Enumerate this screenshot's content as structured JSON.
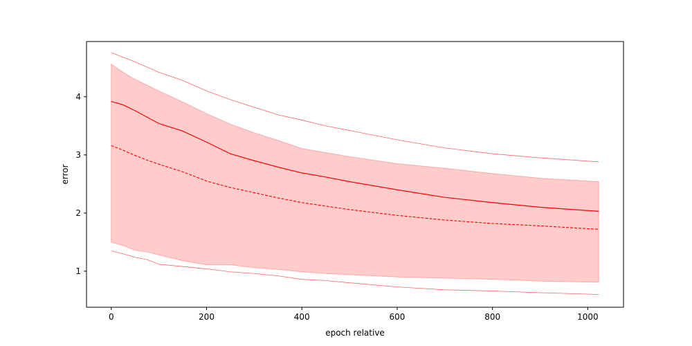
{
  "chart_data": {
    "type": "line",
    "title": "",
    "xlabel": "epoch relative",
    "ylabel": "error",
    "xlim": [
      -52,
      1075
    ],
    "ylim": [
      0.38,
      4.95
    ],
    "xticks": [
      0,
      200,
      400,
      600,
      800,
      1000
    ],
    "yticks": [
      1,
      2,
      3,
      4
    ],
    "grid": false,
    "legend": "none",
    "x": [
      0,
      25,
      50,
      75,
      100,
      150,
      200,
      250,
      300,
      350,
      400,
      450,
      500,
      600,
      700,
      800,
      900,
      1023
    ],
    "series": [
      {
        "style": "solid",
        "color": "#ff0000",
        "values": [
          3.92,
          3.86,
          3.76,
          3.65,
          3.54,
          3.41,
          3.22,
          3.02,
          2.9,
          2.79,
          2.69,
          2.62,
          2.54,
          2.4,
          2.27,
          2.18,
          2.1,
          2.03
        ]
      },
      {
        "style": "dashed",
        "color": "#ff0000",
        "values": [
          3.16,
          3.08,
          2.99,
          2.91,
          2.84,
          2.71,
          2.55,
          2.44,
          2.35,
          2.26,
          2.18,
          2.12,
          2.06,
          1.96,
          1.88,
          1.82,
          1.78,
          1.72
        ]
      },
      {
        "style": "band",
        "color": "#ff0000",
        "lower": [
          1.5,
          1.44,
          1.36,
          1.33,
          1.28,
          1.18,
          1.11,
          1.11,
          1.06,
          1.03,
          0.99,
          0.96,
          0.94,
          0.9,
          0.88,
          0.86,
          0.83,
          0.81
        ],
        "upper": [
          4.56,
          4.42,
          4.3,
          4.2,
          4.1,
          3.91,
          3.71,
          3.53,
          3.38,
          3.25,
          3.11,
          3.04,
          2.97,
          2.85,
          2.77,
          2.68,
          2.6,
          2.54
        ]
      },
      {
        "style": "thin",
        "color": "#ff0000",
        "values": [
          4.76,
          4.68,
          4.6,
          4.51,
          4.42,
          4.28,
          4.1,
          3.95,
          3.82,
          3.69,
          3.6,
          3.5,
          3.42,
          3.26,
          3.12,
          3.02,
          2.95,
          2.88
        ]
      },
      {
        "style": "thin",
        "color": "#ff0000",
        "values": [
          1.35,
          1.3,
          1.24,
          1.2,
          1.12,
          1.08,
          1.04,
          0.99,
          0.96,
          0.92,
          0.86,
          0.84,
          0.8,
          0.73,
          0.68,
          0.66,
          0.63,
          0.6
        ]
      }
    ]
  }
}
